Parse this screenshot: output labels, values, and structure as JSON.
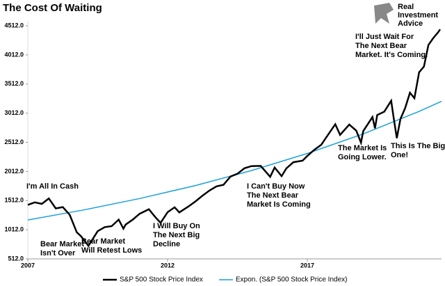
{
  "chart_data": {
    "type": "line",
    "title": "The Cost Of Waiting",
    "logo": [
      "Real",
      "Investment",
      "Advice"
    ],
    "x": [
      2007.0,
      2007.25,
      2007.5,
      2007.75,
      2008.0,
      2008.25,
      2008.5,
      2008.75,
      2008.9,
      2009.17,
      2009.25,
      2009.5,
      2009.75,
      2010.0,
      2010.25,
      2010.42,
      2010.5,
      2010.75,
      2011.0,
      2011.33,
      2011.58,
      2011.75,
      2012.0,
      2012.25,
      2012.42,
      2012.75,
      2013.0,
      2013.25,
      2013.5,
      2013.75,
      2014.0,
      2014.25,
      2014.5,
      2014.75,
      2015.0,
      2015.33,
      2015.67,
      2015.83,
      2016.08,
      2016.25,
      2016.5,
      2016.83,
      2017.0,
      2017.25,
      2017.5,
      2017.75,
      2018.0,
      2018.17,
      2018.5,
      2018.75,
      2018.92,
      2019.0,
      2019.33,
      2019.42,
      2019.5,
      2019.75,
      2020.0,
      2020.08,
      2020.2,
      2020.33,
      2020.5,
      2020.67,
      2020.83,
      2021.0,
      2021.17,
      2021.33,
      2021.5,
      2021.67,
      2021.75
    ],
    "series": [
      {
        "name": "S&P 500 Stock Price Index",
        "color": "#000000",
        "values": [
          1438,
          1482,
          1455,
          1549,
          1378,
          1400,
          1267,
          968,
          903,
          735,
          797,
          987,
          1057,
          1073,
          1186,
          1030,
          1101,
          1184,
          1286,
          1363,
          1218,
          1131,
          1312,
          1397,
          1310,
          1412,
          1498,
          1597,
          1685,
          1756,
          1783,
          1924,
          1972,
          2067,
          2104,
          2107,
          1920,
          2080,
          1932,
          2065,
          2170,
          2198,
          2278,
          2384,
          2470,
          2648,
          2823,
          2640,
          2816,
          2711,
          2506,
          2704,
          2945,
          2752,
          2980,
          3037,
          3225,
          2954,
          2584,
          2912,
          3100,
          3363,
          3269,
          3714,
          3811,
          4181,
          4297,
          4395,
          4450
        ]
      },
      {
        "name": "Expon. (S&P 500 Stock Price Index)",
        "color": "#1ba1d8",
        "x": [
          2007,
          2009,
          2011,
          2013,
          2015,
          2017,
          2019,
          2021,
          2021.8
        ],
        "values": [
          1180,
          1351,
          1547,
          1771,
          2027,
          2321,
          2657,
          3042,
          3215
        ]
      }
    ],
    "xlim": [
      2007,
      2021.8
    ],
    "xticks": [
      2007,
      2012,
      2017
    ],
    "ylim": [
      512,
      4512
    ],
    "yticks": [
      {
        "value": 512,
        "label": "512.0"
      },
      {
        "value": 1012,
        "label": "1012.0"
      },
      {
        "value": 1512,
        "label": "1512.0"
      },
      {
        "value": 2012,
        "label": "2012.0"
      },
      {
        "value": 2512,
        "label": "2512.0"
      },
      {
        "value": 3012,
        "label": "3012.0"
      },
      {
        "value": 3512,
        "label": "3512.0"
      },
      {
        "value": 4012,
        "label": "4012.0"
      },
      {
        "value": 4512,
        "label": "4512.0"
      }
    ],
    "annotations": [
      [
        "I'm All In Cash"
      ],
      [
        "Bear Market",
        "Isn't Over"
      ],
      [
        "Bear Market",
        "Will Retest Lows"
      ],
      [
        "I Will Buy On",
        "The Next Big",
        "Decline"
      ],
      [
        "I Can't Buy Now",
        "The Next Bear",
        "Market Is Coming"
      ],
      [
        "The Market Is",
        "Going Lower."
      ],
      [
        "This Is The Big",
        "One!"
      ],
      [
        "I'll Just Wait For",
        "The Next Bear",
        "Market. It's Coming."
      ]
    ]
  }
}
